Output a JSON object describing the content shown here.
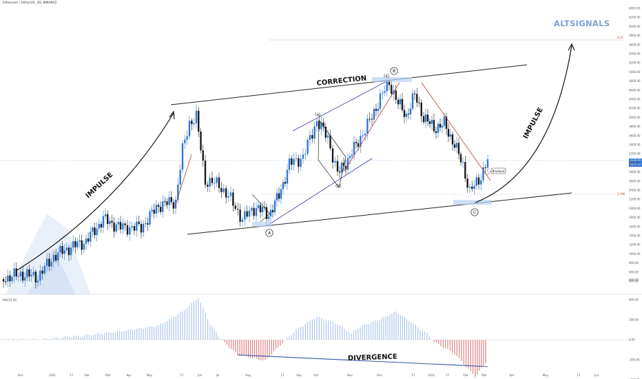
{
  "header": {
    "symbol_text": "Ethereum / TetherUS, 2D, BINANCE"
  },
  "brand": {
    "watermark": "ALTSIGNALS"
  },
  "indicator": {
    "label": "MACD 8C"
  },
  "price_tag": {
    "line1": "3130.00",
    "line2": "3035.00"
  },
  "fib_levels": {
    "top": "0.27",
    "bottom": "1.786"
  },
  "chart_data": [
    {
      "type": "candlestick",
      "title": "Ethereum / TetherUS, 2D, BINANCE",
      "ylim": [
        0,
        6400
      ],
      "y_ticks": [
        "6400.00",
        "6200.00",
        "6000.00",
        "5800.00",
        "5600.00",
        "5400.00",
        "5200.00",
        "5000.00",
        "4800.00",
        "4600.00",
        "4400.00",
        "4200.00",
        "4000.00",
        "3800.00",
        "3600.00",
        "3400.00",
        "3200.00",
        "3000.00",
        "2800.00",
        "2600.00",
        "2400.00",
        "2200.00",
        "2000.00",
        "1800.00",
        "1600.00",
        "1400.00",
        "1200.00",
        "1000.00",
        "800.00",
        "600.00",
        "400.00"
      ],
      "x_ticks": [
        "Dec",
        "2021",
        "17",
        "Feb",
        "Mar",
        "Apr",
        "May",
        "17",
        "Jun",
        "Jul",
        "Aug",
        "17",
        "Sep",
        "Oct",
        "Nov",
        "Dec",
        "17",
        "2022",
        "17",
        "Feb",
        "Mar",
        "Apr",
        "May",
        "17",
        "Jun"
      ],
      "close_path": [
        [
          "Dec",
          500
        ],
        [
          "2021",
          780
        ],
        [
          "Feb",
          1400
        ],
        [
          "Mar",
          1650
        ],
        [
          "Apr",
          1950
        ],
        [
          "May",
          3450
        ],
        [
          "May",
          4150
        ],
        [
          "Jun",
          2700
        ],
        [
          "Jun",
          2300
        ],
        [
          "Jul",
          1900
        ],
        [
          "Jul",
          2200
        ],
        [
          "Aug",
          2600
        ],
        [
          "Aug",
          3250
        ],
        [
          "Sep",
          3950
        ],
        [
          "Sep",
          3050
        ],
        [
          "Sep",
          2950
        ],
        [
          "Oct",
          3500
        ],
        [
          "Nov",
          4500
        ],
        [
          "Nov",
          4750
        ],
        [
          "Dec",
          4100
        ],
        [
          "Dec",
          4300
        ],
        [
          "2022",
          3750
        ],
        [
          "17",
          3100
        ],
        [
          "17",
          2450
        ],
        [
          "Feb",
          2650
        ],
        [
          "Feb",
          3050
        ]
      ],
      "annotations": {
        "wave_labels": [
          "(a)",
          "(b)",
          "(c)",
          "A",
          "B",
          "C"
        ],
        "text_labels": [
          "IMPULSE",
          "CORRECTION",
          "IMPULSE",
          "DIVERGENCE"
        ],
        "breakout": "Breakout"
      }
    },
    {
      "type": "bar",
      "title": "MACD 8C",
      "ylim": [
        -400,
        600
      ],
      "y_ticks": [
        "600.00",
        "400.00",
        "200.00",
        "0.00",
        "-200.00",
        "-400.00"
      ],
      "histogram_path": [
        [
          "Dec",
          0
        ],
        [
          "2021",
          5
        ],
        [
          "Feb",
          40
        ],
        [
          "Mar",
          90
        ],
        [
          "Apr",
          140
        ],
        [
          "May",
          280
        ],
        [
          "May",
          420
        ],
        [
          "Jun",
          120
        ],
        [
          "Jul",
          -150
        ],
        [
          "Jul",
          -210
        ],
        [
          "Aug",
          -40
        ],
        [
          "Aug",
          100
        ],
        [
          "Sep",
          220
        ],
        [
          "Sep",
          160
        ],
        [
          "Oct",
          70
        ],
        [
          "Oct",
          220
        ],
        [
          "Nov",
          300
        ],
        [
          "Nov",
          180
        ],
        [
          "Dec",
          60
        ],
        [
          "17",
          20
        ],
        [
          "2022",
          -60
        ],
        [
          "17",
          -220
        ],
        [
          "Feb",
          -370
        ],
        [
          "Feb",
          -200
        ]
      ],
      "annotation": "DIVERGENCE"
    }
  ]
}
